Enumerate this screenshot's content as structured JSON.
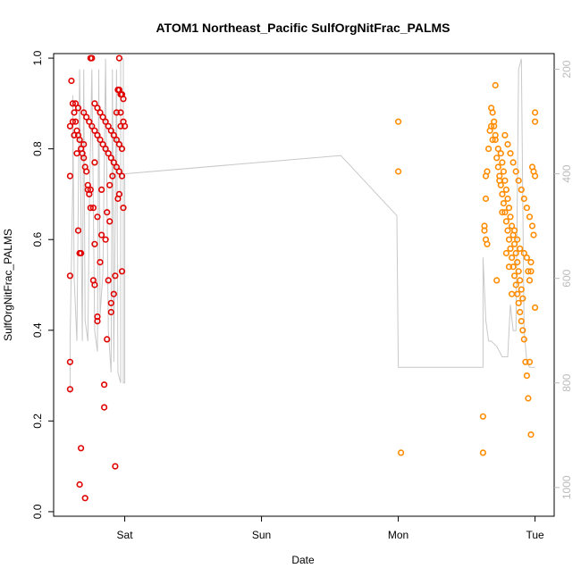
{
  "chart_data": {
    "type": "scatter",
    "title": "ATOM1 Northeast_Pacific SulfOrgNitFrac_PALMS",
    "xlabel": "Date",
    "ylabel": "SulfOrgNitFrac_PALMS",
    "x_units": "days (Sat = 1, Sun = 2, Mon = 3, Tue = 4)",
    "x_ticks": [
      {
        "value": 1,
        "label": "Sat"
      },
      {
        "value": 2,
        "label": "Sun"
      },
      {
        "value": 3,
        "label": "Mon"
      },
      {
        "value": 4,
        "label": "Tue"
      }
    ],
    "xlim": [
      0.48,
      4.14
    ],
    "ylim": [
      -0.01,
      1.01
    ],
    "y_ticks": [
      0.0,
      0.2,
      0.4,
      0.6,
      0.8,
      1.0
    ],
    "y2_ticks": [
      200,
      400,
      600,
      800,
      1000
    ],
    "y2lim": [
      1055,
      170
    ],
    "grid": false,
    "series": [
      {
        "color": "#e00000",
        "points": [
          [
            0.61,
            0.95
          ],
          [
            0.62,
            0.9
          ],
          [
            0.63,
            0.88
          ],
          [
            0.64,
            0.86
          ],
          [
            0.6,
            0.85
          ],
          [
            0.65,
            0.84
          ],
          [
            0.66,
            0.83
          ],
          [
            0.67,
            0.82
          ],
          [
            0.68,
            0.8
          ],
          [
            0.69,
            0.79
          ],
          [
            0.7,
            0.78
          ],
          [
            0.71,
            0.76
          ],
          [
            0.72,
            0.75
          ],
          [
            0.6,
            0.74
          ],
          [
            0.73,
            0.71
          ],
          [
            0.74,
            0.7
          ],
          [
            0.75,
            0.67
          ],
          [
            0.66,
            0.62
          ],
          [
            0.67,
            0.57
          ],
          [
            0.68,
            0.57
          ],
          [
            0.6,
            0.52
          ],
          [
            0.77,
            0.51
          ],
          [
            0.78,
            0.5
          ],
          [
            0.8,
            0.43
          ],
          [
            0.6,
            0.33
          ],
          [
            0.6,
            0.27
          ],
          [
            0.85,
            0.28
          ],
          [
            0.85,
            0.23
          ],
          [
            0.68,
            0.14
          ],
          [
            0.67,
            0.06
          ],
          [
            0.71,
            0.03
          ],
          [
            0.87,
            0.38
          ],
          [
            0.9,
            0.44
          ],
          [
            0.9,
            0.46
          ],
          [
            0.92,
            0.48
          ],
          [
            0.93,
            0.1
          ],
          [
            0.75,
            1.0
          ],
          [
            0.76,
            1.0
          ],
          [
            0.96,
            1.0
          ],
          [
            0.64,
            0.9
          ],
          [
            0.66,
            0.89
          ],
          [
            0.7,
            0.88
          ],
          [
            0.72,
            0.87
          ],
          [
            0.74,
            0.86
          ],
          [
            0.76,
            0.85
          ],
          [
            0.78,
            0.84
          ],
          [
            0.8,
            0.83
          ],
          [
            0.82,
            0.82
          ],
          [
            0.84,
            0.81
          ],
          [
            0.86,
            0.8
          ],
          [
            0.88,
            0.79
          ],
          [
            0.9,
            0.78
          ],
          [
            0.92,
            0.77
          ],
          [
            0.94,
            0.76
          ],
          [
            0.96,
            0.75
          ],
          [
            0.98,
            0.74
          ],
          [
            0.78,
            0.9
          ],
          [
            0.8,
            0.89
          ],
          [
            0.82,
            0.88
          ],
          [
            0.84,
            0.87
          ],
          [
            0.86,
            0.86
          ],
          [
            0.88,
            0.85
          ],
          [
            0.9,
            0.84
          ],
          [
            0.92,
            0.83
          ],
          [
            0.94,
            0.82
          ],
          [
            0.96,
            0.81
          ],
          [
            0.98,
            0.8
          ],
          [
            0.95,
            0.93
          ],
          [
            0.96,
            0.93
          ],
          [
            0.97,
            0.92
          ],
          [
            0.98,
            0.92
          ],
          [
            0.99,
            0.91
          ],
          [
            0.94,
            0.88
          ],
          [
            0.97,
            0.85
          ],
          [
            0.99,
            0.86
          ],
          [
            1.0,
            0.85
          ],
          [
            0.97,
            0.88
          ],
          [
            0.95,
            0.69
          ],
          [
            0.96,
            0.7
          ],
          [
            0.99,
            0.67
          ],
          [
            0.98,
            0.53
          ],
          [
            0.93,
            0.52
          ],
          [
            0.88,
            0.51
          ],
          [
            0.83,
            0.61
          ],
          [
            0.82,
            0.55
          ],
          [
            0.8,
            0.42
          ],
          [
            0.78,
            0.59
          ],
          [
            0.77,
            0.67
          ],
          [
            0.75,
            0.71
          ],
          [
            0.73,
            0.72
          ],
          [
            0.83,
            0.71
          ],
          [
            0.87,
            0.66
          ],
          [
            0.89,
            0.64
          ],
          [
            0.86,
            0.6
          ],
          [
            0.89,
            0.72
          ],
          [
            0.91,
            0.74
          ],
          [
            0.62,
            0.86
          ],
          [
            0.63,
            0.83
          ],
          [
            0.65,
            0.79
          ],
          [
            0.7,
            0.81
          ],
          [
            0.8,
            0.65
          ],
          [
            0.78,
            0.77
          ]
        ]
      },
      {
        "color": "#ff8c00",
        "points": [
          [
            3.0,
            0.86
          ],
          [
            3.0,
            0.75
          ],
          [
            3.02,
            0.13
          ],
          [
            3.62,
            0.21
          ],
          [
            3.62,
            0.13
          ],
          [
            3.64,
            0.74
          ],
          [
            3.64,
            0.69
          ],
          [
            3.65,
            0.75
          ],
          [
            3.66,
            0.8
          ],
          [
            3.67,
            0.84
          ],
          [
            3.68,
            0.89
          ],
          [
            3.69,
            0.88
          ],
          [
            3.7,
            0.85
          ],
          [
            3.71,
            0.82
          ],
          [
            3.72,
            0.78
          ],
          [
            3.73,
            0.76
          ],
          [
            3.74,
            0.74
          ],
          [
            3.75,
            0.72
          ],
          [
            3.76,
            0.7
          ],
          [
            3.77,
            0.68
          ],
          [
            3.78,
            0.66
          ],
          [
            3.79,
            0.64
          ],
          [
            3.8,
            0.62
          ],
          [
            3.81,
            0.6
          ],
          [
            3.82,
            0.58
          ],
          [
            3.83,
            0.56
          ],
          [
            3.84,
            0.54
          ],
          [
            3.85,
            0.52
          ],
          [
            3.86,
            0.5
          ],
          [
            3.87,
            0.48
          ],
          [
            3.88,
            0.46
          ],
          [
            3.89,
            0.44
          ],
          [
            3.9,
            0.42
          ],
          [
            3.91,
            0.4
          ],
          [
            3.92,
            0.38
          ],
          [
            3.93,
            0.33
          ],
          [
            3.94,
            0.3
          ],
          [
            3.95,
            0.25
          ],
          [
            3.96,
            0.33
          ],
          [
            3.97,
            0.17
          ],
          [
            3.71,
            0.94
          ],
          [
            3.72,
            0.51
          ],
          [
            4.0,
            0.88
          ],
          [
            4.0,
            0.45
          ],
          [
            3.63,
            0.63
          ],
          [
            3.63,
            0.62
          ],
          [
            3.64,
            0.6
          ],
          [
            3.65,
            0.59
          ],
          [
            3.75,
            0.79
          ],
          [
            3.76,
            0.77
          ],
          [
            3.77,
            0.75
          ],
          [
            3.78,
            0.73
          ],
          [
            3.79,
            0.71
          ],
          [
            3.8,
            0.69
          ],
          [
            3.81,
            0.67
          ],
          [
            3.82,
            0.65
          ],
          [
            3.83,
            0.63
          ],
          [
            3.84,
            0.61
          ],
          [
            3.85,
            0.59
          ],
          [
            3.86,
            0.57
          ],
          [
            3.87,
            0.55
          ],
          [
            3.88,
            0.53
          ],
          [
            3.89,
            0.51
          ],
          [
            3.9,
            0.49
          ],
          [
            3.91,
            0.47
          ],
          [
            3.78,
            0.83
          ],
          [
            3.8,
            0.81
          ],
          [
            3.82,
            0.79
          ],
          [
            3.84,
            0.77
          ],
          [
            3.86,
            0.75
          ],
          [
            3.88,
            0.73
          ],
          [
            3.9,
            0.71
          ],
          [
            3.92,
            0.69
          ],
          [
            3.94,
            0.67
          ],
          [
            3.96,
            0.65
          ],
          [
            3.98,
            0.63
          ],
          [
            3.99,
            0.61
          ],
          [
            3.98,
            0.76
          ],
          [
            3.99,
            0.75
          ],
          [
            4.0,
            0.74
          ],
          [
            3.97,
            0.55
          ],
          [
            3.97,
            0.53
          ],
          [
            3.7,
            0.86
          ],
          [
            3.71,
            0.83
          ],
          [
            3.73,
            0.8
          ],
          [
            3.74,
            0.73
          ],
          [
            3.76,
            0.66
          ],
          [
            3.79,
            0.57
          ],
          [
            3.81,
            0.54
          ],
          [
            3.83,
            0.48
          ],
          [
            3.85,
            0.62
          ],
          [
            3.87,
            0.6
          ],
          [
            3.89,
            0.58
          ],
          [
            3.92,
            0.57
          ],
          [
            3.94,
            0.56
          ],
          [
            3.95,
            0.53
          ],
          [
            3.96,
            0.51
          ],
          [
            3.68,
            0.85
          ],
          [
            3.69,
            0.82
          ]
        ]
      },
      {
        "color": "#ff8c00",
        "points": [
          [
            4.0,
            0.86
          ]
        ]
      }
    ],
    "line": {
      "color": "#c8c8c8",
      "note": "depth trace on right axis",
      "points": [
        [
          0.6,
          820
        ],
        [
          0.6,
          720
        ],
        [
          0.62,
          420
        ],
        [
          0.62,
          250
        ],
        [
          0.63,
          600
        ],
        [
          0.65,
          720
        ],
        [
          0.67,
          200
        ],
        [
          0.68,
          470
        ],
        [
          0.69,
          720
        ],
        [
          0.7,
          200
        ],
        [
          0.71,
          680
        ],
        [
          0.73,
          720
        ],
        [
          0.74,
          480
        ],
        [
          0.76,
          200
        ],
        [
          0.78,
          700
        ],
        [
          0.8,
          740
        ],
        [
          0.81,
          200
        ],
        [
          0.82,
          670
        ],
        [
          0.84,
          590
        ],
        [
          0.86,
          180
        ],
        [
          0.88,
          700
        ],
        [
          0.9,
          780
        ],
        [
          0.91,
          200
        ],
        [
          0.92,
          760
        ],
        [
          0.94,
          200
        ],
        [
          0.95,
          780
        ],
        [
          0.97,
          800
        ],
        [
          0.97,
          180
        ],
        [
          0.99,
          180
        ],
        [
          0.99,
          800
        ],
        [
          1.0,
          800
        ],
        [
          1.0,
          400
        ],
        [
          2.58,
          365
        ],
        [
          2.99,
          480
        ],
        [
          3.0,
          770
        ],
        [
          3.62,
          770
        ],
        [
          3.62,
          560
        ],
        [
          3.64,
          680
        ],
        [
          3.66,
          720
        ],
        [
          3.68,
          720
        ],
        [
          3.72,
          730
        ],
        [
          3.76,
          750
        ],
        [
          3.8,
          750
        ],
        [
          3.82,
          650
        ],
        [
          3.84,
          700
        ],
        [
          3.86,
          700
        ],
        [
          3.88,
          200
        ],
        [
          3.9,
          180
        ],
        [
          3.92,
          700
        ],
        [
          3.94,
          760
        ],
        [
          3.96,
          770
        ],
        [
          3.98,
          770
        ],
        [
          4.0,
          770
        ]
      ]
    }
  }
}
